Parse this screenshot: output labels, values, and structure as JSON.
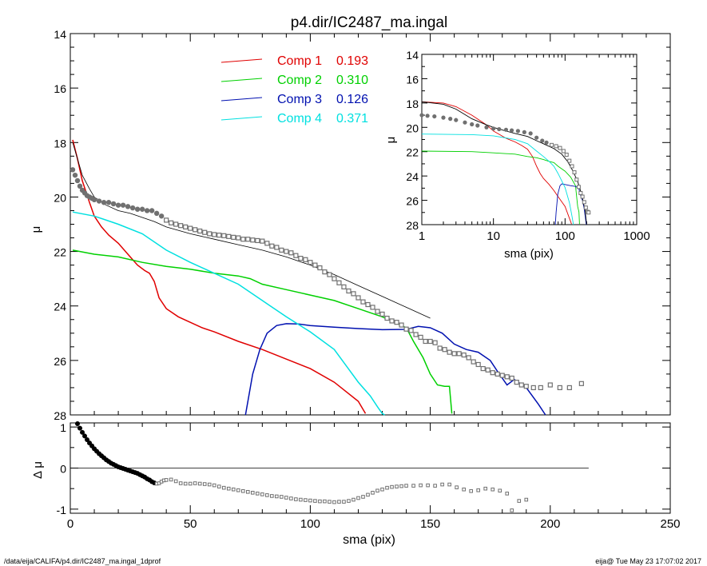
{
  "title": "p4.dir/IC2487_ma.ingal",
  "footer": {
    "path": "/data/eija/CALIFA/p4.dir/IC2487_ma.ingal_1dprof",
    "stamp": "eija@  Tue May 23 17:07:02 2017"
  },
  "colors": {
    "comp1": "#e00000",
    "comp2": "#00d000",
    "comp3": "#0010b0",
    "comp4": "#00e0e0",
    "model": "#000000",
    "data": "#707070"
  },
  "chart_data": [
    {
      "id": "main",
      "type": "line",
      "xlabel": "sma (pix)",
      "ylabel": "μ",
      "xlim": [
        0,
        250
      ],
      "ylim": [
        28,
        14
      ],
      "x_ticks": [
        "0",
        "50",
        "100",
        "150",
        "200",
        "250"
      ],
      "y_ticks": [
        "14",
        "16",
        "18",
        "20",
        "22",
        "24",
        "26",
        "28"
      ],
      "legend": [
        {
          "key": "comp1",
          "label": "Comp 1",
          "value": "0.193"
        },
        {
          "key": "comp2",
          "label": "Comp 2",
          "value": "0.310"
        },
        {
          "key": "comp3",
          "label": "Comp 3",
          "value": "0.126"
        },
        {
          "key": "comp4",
          "label": "Comp 4",
          "value": "0.371"
        }
      ],
      "series": [
        {
          "key": "comp1",
          "x": [
            1,
            3,
            5,
            8,
            10,
            13,
            16,
            20,
            24,
            28,
            31,
            33,
            35,
            37,
            40,
            45,
            50,
            55,
            60,
            70,
            80,
            90,
            100,
            110,
            120,
            123
          ],
          "y": [
            17.9,
            18.6,
            19.4,
            20.2,
            20.7,
            21.1,
            21.4,
            21.7,
            22.1,
            22.5,
            22.7,
            22.8,
            23.1,
            23.7,
            24.1,
            24.4,
            24.6,
            24.8,
            24.95,
            25.3,
            25.6,
            25.95,
            26.3,
            26.8,
            27.5,
            27.95
          ]
        },
        {
          "key": "comp2",
          "x": [
            1,
            10,
            20,
            30,
            40,
            50,
            60,
            70,
            75,
            80,
            90,
            100,
            110,
            120,
            130,
            140,
            143,
            147,
            150,
            153,
            156,
            158,
            159
          ],
          "y": [
            21.95,
            22.1,
            22.2,
            22.4,
            22.55,
            22.65,
            22.8,
            22.9,
            23.0,
            23.2,
            23.4,
            23.6,
            23.8,
            24.1,
            24.4,
            24.8,
            25.3,
            25.9,
            26.5,
            26.9,
            26.95,
            26.95,
            27.95
          ]
        },
        {
          "key": "comp3",
          "x": [
            73,
            74,
            76,
            79,
            82,
            86,
            90,
            95,
            100,
            110,
            120,
            130,
            140,
            145,
            150,
            155,
            160,
            165,
            170,
            175,
            178,
            182,
            185,
            190,
            195,
            198
          ],
          "y": [
            28,
            27.5,
            26.5,
            25.6,
            25.0,
            24.72,
            24.65,
            24.66,
            24.72,
            24.78,
            24.83,
            24.87,
            24.86,
            24.75,
            24.8,
            25.0,
            25.4,
            25.6,
            25.7,
            26.0,
            26.4,
            26.9,
            26.7,
            27.0,
            27.6,
            28
          ]
        },
        {
          "key": "comp4",
          "x": [
            1,
            10,
            20,
            30,
            40,
            50,
            60,
            70,
            80,
            90,
            100,
            110,
            115,
            120,
            125,
            128,
            130,
            131
          ],
          "y": [
            20.55,
            20.7,
            21.0,
            21.35,
            21.95,
            22.4,
            22.8,
            23.2,
            23.8,
            24.4,
            24.95,
            25.6,
            26.2,
            26.8,
            27.3,
            27.7,
            27.95,
            28
          ]
        },
        {
          "key": "model",
          "x": [
            1,
            3,
            5,
            8,
            10,
            15,
            20,
            25,
            30,
            35,
            40,
            50,
            60,
            70,
            80,
            90,
            100,
            110,
            120,
            130,
            140,
            150
          ],
          "y": [
            18.0,
            18.6,
            19.2,
            19.7,
            20.0,
            20.3,
            20.5,
            20.6,
            20.75,
            20.9,
            21.1,
            21.35,
            21.55,
            21.75,
            21.95,
            22.2,
            22.5,
            22.85,
            23.25,
            23.65,
            24.05,
            24.45
          ]
        }
      ],
      "data_points": {
        "x": [
          1,
          2,
          3,
          4,
          5,
          6,
          7,
          8,
          9,
          10,
          12,
          14,
          16,
          18,
          20,
          22,
          24,
          26,
          28,
          30,
          32,
          34,
          36,
          38,
          40,
          42,
          44,
          46,
          48,
          50,
          52,
          54,
          56,
          58,
          60,
          62,
          64,
          66,
          68,
          70,
          72,
          74,
          76,
          78,
          80,
          82,
          84,
          86,
          88,
          90,
          92,
          94,
          96,
          98,
          100,
          102,
          104,
          106,
          108,
          110,
          112,
          114,
          116,
          118,
          120,
          122,
          124,
          126,
          128,
          130,
          132,
          134,
          136,
          138,
          140,
          142,
          144,
          146,
          148,
          150,
          152,
          154,
          156,
          158,
          160,
          162,
          164,
          166,
          168,
          170,
          172,
          174,
          176,
          178,
          180,
          182,
          184,
          186,
          188,
          190,
          193,
          196,
          200,
          204,
          208,
          213
        ],
        "y": [
          19.0,
          19.2,
          19.4,
          19.6,
          19.75,
          19.85,
          19.95,
          20.0,
          20.05,
          20.1,
          20.15,
          20.2,
          20.2,
          20.25,
          20.3,
          20.3,
          20.35,
          20.4,
          20.45,
          20.45,
          20.5,
          20.5,
          20.6,
          20.7,
          20.85,
          20.95,
          21.0,
          21.05,
          21.1,
          21.15,
          21.2,
          21.25,
          21.3,
          21.35,
          21.38,
          21.4,
          21.42,
          21.45,
          21.48,
          21.5,
          21.55,
          21.55,
          21.58,
          21.6,
          21.62,
          21.7,
          21.8,
          21.85,
          21.95,
          22.0,
          22.05,
          22.15,
          22.25,
          22.3,
          22.4,
          22.5,
          22.6,
          22.75,
          22.85,
          23.0,
          23.15,
          23.3,
          23.45,
          23.55,
          23.7,
          23.85,
          23.95,
          24.05,
          24.2,
          24.3,
          24.45,
          24.55,
          24.6,
          24.7,
          24.85,
          24.9,
          25.05,
          25.15,
          25.3,
          25.3,
          25.35,
          25.55,
          25.6,
          25.7,
          25.75,
          25.75,
          25.8,
          25.9,
          26.05,
          26.15,
          26.3,
          26.35,
          26.45,
          26.5,
          26.55,
          26.6,
          26.65,
          26.8,
          26.9,
          26.95,
          27.0,
          27.0,
          26.9,
          27.0,
          27.0,
          26.85
        ]
      }
    },
    {
      "id": "residual",
      "type": "scatter",
      "xlabel": "sma (pix)",
      "ylabel": "Δ μ",
      "xlim": [
        0,
        250
      ],
      "ylim": [
        -1.1,
        1.1
      ],
      "x_ticks": [
        "0",
        "50",
        "100",
        "150",
        "200",
        "250"
      ],
      "y_ticks": [
        "1",
        "0",
        "-1"
      ],
      "zero_line_to": 216,
      "x": [
        3,
        4,
        5,
        6,
        7,
        8,
        9,
        10,
        11,
        12,
        13,
        14,
        15,
        16,
        17,
        18,
        19,
        20,
        21,
        22,
        23,
        24,
        25,
        26,
        27,
        28,
        29,
        30,
        31,
        32,
        33,
        34,
        35,
        36,
        37,
        38,
        39,
        40,
        42,
        44,
        46,
        48,
        50,
        52,
        54,
        56,
        58,
        60,
        62,
        64,
        66,
        68,
        70,
        72,
        74,
        76,
        78,
        80,
        82,
        84,
        86,
        88,
        90,
        92,
        94,
        96,
        98,
        100,
        102,
        104,
        106,
        108,
        110,
        112,
        114,
        116,
        118,
        120,
        122,
        124,
        126,
        128,
        130,
        132,
        134,
        136,
        138,
        140,
        143,
        146,
        149,
        152,
        155,
        158,
        161,
        164,
        167,
        170,
        173,
        176,
        179,
        182,
        184,
        187,
        190
      ],
      "y": [
        1.08,
        0.97,
        0.87,
        0.78,
        0.69,
        0.61,
        0.54,
        0.47,
        0.41,
        0.35,
        0.3,
        0.25,
        0.2,
        0.16,
        0.12,
        0.09,
        0.06,
        0.03,
        0.01,
        -0.01,
        -0.03,
        -0.05,
        -0.07,
        -0.09,
        -0.11,
        -0.13,
        -0.16,
        -0.19,
        -0.22,
        -0.26,
        -0.29,
        -0.33,
        -0.36,
        -0.38,
        -0.37,
        -0.33,
        -0.3,
        -0.29,
        -0.28,
        -0.32,
        -0.37,
        -0.38,
        -0.38,
        -0.37,
        -0.38,
        -0.39,
        -0.4,
        -0.42,
        -0.45,
        -0.48,
        -0.5,
        -0.52,
        -0.54,
        -0.56,
        -0.58,
        -0.6,
        -0.62,
        -0.64,
        -0.66,
        -0.68,
        -0.69,
        -0.7,
        -0.72,
        -0.74,
        -0.76,
        -0.77,
        -0.78,
        -0.79,
        -0.8,
        -0.81,
        -0.81,
        -0.82,
        -0.83,
        -0.82,
        -0.82,
        -0.8,
        -0.77,
        -0.73,
        -0.7,
        -0.65,
        -0.6,
        -0.55,
        -0.52,
        -0.48,
        -0.46,
        -0.45,
        -0.44,
        -0.43,
        -0.43,
        -0.42,
        -0.42,
        -0.43,
        -0.4,
        -0.4,
        -0.47,
        -0.52,
        -0.56,
        -0.54,
        -0.5,
        -0.52,
        -0.55,
        -0.62,
        -1.03,
        -0.8,
        -0.77
      ]
    },
    {
      "id": "inset",
      "type": "line",
      "xlabel": "sma (pix)",
      "ylabel": "μ",
      "x_scale": "log",
      "xlim": [
        1,
        1000
      ],
      "ylim": [
        28,
        14
      ],
      "x_ticks": [
        "1",
        "10",
        "100",
        "1000"
      ],
      "y_ticks": [
        "14",
        "16",
        "18",
        "20",
        "22",
        "24",
        "26",
        "28"
      ],
      "series": [
        {
          "key": "comp1",
          "x": [
            1,
            2,
            3,
            5,
            8,
            10,
            15,
            20,
            25,
            30,
            35,
            40,
            45,
            50,
            60,
            70,
            80,
            100,
            123
          ],
          "y": [
            17.9,
            18.0,
            18.3,
            19.0,
            19.8,
            20.3,
            20.9,
            21.2,
            21.5,
            21.8,
            22.4,
            23.2,
            23.8,
            24.2,
            24.7,
            25.2,
            25.7,
            26.5,
            27.95
          ]
        },
        {
          "key": "comp2",
          "x": [
            1,
            5,
            10,
            20,
            30,
            40,
            50,
            60,
            70,
            80,
            100,
            120,
            140,
            150,
            156,
            159
          ],
          "y": [
            21.95,
            22.0,
            22.1,
            22.2,
            22.4,
            22.5,
            22.65,
            22.8,
            22.9,
            23.2,
            23.6,
            24.1,
            24.8,
            26.5,
            26.95,
            27.95
          ]
        },
        {
          "key": "comp3",
          "x": [
            73,
            75,
            79,
            85,
            90,
            100,
            120,
            140,
            155,
            165,
            175,
            185,
            198
          ],
          "y": [
            28,
            27.0,
            25.5,
            24.8,
            24.65,
            24.7,
            24.8,
            24.86,
            25.0,
            25.6,
            26.0,
            26.7,
            28
          ]
        },
        {
          "key": "comp4",
          "x": [
            1,
            5,
            10,
            20,
            30,
            40,
            50,
            60,
            70,
            80,
            100,
            115,
            125,
            131
          ],
          "y": [
            20.55,
            20.6,
            20.7,
            21.0,
            21.35,
            21.95,
            22.4,
            22.8,
            23.2,
            23.8,
            24.95,
            26.2,
            27.3,
            28
          ]
        },
        {
          "key": "model",
          "x": [
            1,
            2,
            3,
            5,
            8,
            10,
            15,
            20,
            30,
            40,
            50,
            70,
            90,
            110,
            130,
            150,
            170,
            190,
            200
          ],
          "y": [
            17.9,
            18.1,
            18.5,
            19.3,
            19.8,
            20.0,
            20.3,
            20.5,
            20.75,
            21.1,
            21.35,
            21.75,
            22.2,
            22.85,
            23.65,
            24.45,
            25.5,
            26.8,
            27.95
          ]
        }
      ],
      "data_points": {
        "x": [
          1,
          1.2,
          1.5,
          2,
          2.5,
          3,
          4,
          5,
          6,
          8,
          10,
          12,
          15,
          18,
          22,
          27,
          33,
          40,
          48,
          55,
          65,
          75,
          85,
          95,
          105,
          115,
          125,
          135,
          145,
          155,
          165,
          175,
          185,
          195,
          205,
          213
        ],
        "y": [
          19.0,
          19.05,
          19.1,
          19.2,
          19.3,
          19.4,
          19.6,
          19.75,
          19.85,
          20.0,
          20.1,
          20.15,
          20.2,
          20.25,
          20.3,
          20.4,
          20.5,
          20.85,
          21.1,
          21.25,
          21.45,
          21.55,
          21.7,
          21.95,
          22.25,
          22.75,
          23.2,
          23.7,
          24.3,
          24.9,
          25.4,
          25.7,
          26.15,
          26.6,
          26.95,
          27.0
        ]
      }
    }
  ]
}
